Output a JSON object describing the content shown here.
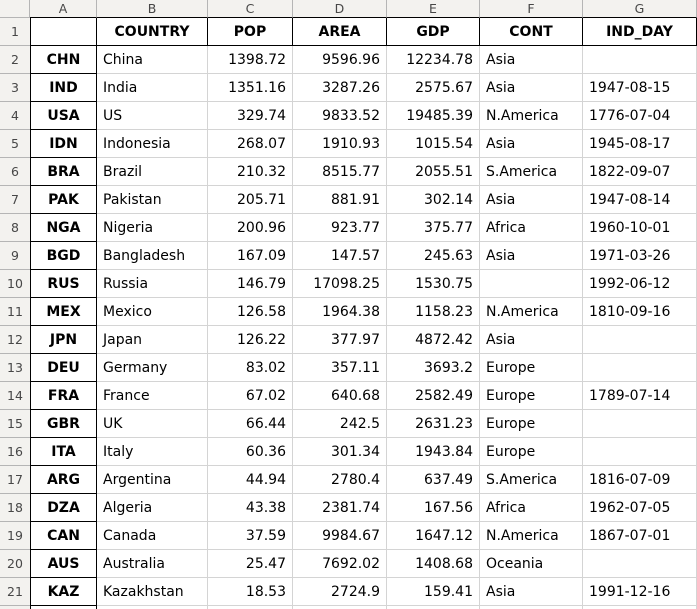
{
  "app": {
    "name": "spreadsheet-grid"
  },
  "colors": {
    "hdr-bg": "#f3f2ef",
    "hdr-line": "#b5b5b5",
    "hdr-text": "#474747",
    "grid": "#d4d4d4",
    "table-border": "#000000",
    "cell-bg": "#ffffff",
    "cell-text": "#000000"
  },
  "column_letters": [
    "A",
    "B",
    "C",
    "D",
    "E",
    "F",
    "G"
  ],
  "table": {
    "header": {
      "row_number": "1",
      "index_label": "",
      "labels": [
        "COUNTRY",
        "POP",
        "AREA",
        "GDP",
        "CONT",
        "IND_DAY"
      ]
    },
    "rows": [
      {
        "num": "2",
        "code": "CHN",
        "country": "China",
        "pop": "1398.72",
        "area": "9596.96",
        "gdp": "12234.78",
        "cont": "Asia",
        "ind_day": ""
      },
      {
        "num": "3",
        "code": "IND",
        "country": "India",
        "pop": "1351.16",
        "area": "3287.26",
        "gdp": "2575.67",
        "cont": "Asia",
        "ind_day": "1947-08-15"
      },
      {
        "num": "4",
        "code": "USA",
        "country": "US",
        "pop": "329.74",
        "area": "9833.52",
        "gdp": "19485.39",
        "cont": "N.America",
        "ind_day": "1776-07-04"
      },
      {
        "num": "5",
        "code": "IDN",
        "country": "Indonesia",
        "pop": "268.07",
        "area": "1910.93",
        "gdp": "1015.54",
        "cont": "Asia",
        "ind_day": "1945-08-17"
      },
      {
        "num": "6",
        "code": "BRA",
        "country": "Brazil",
        "pop": "210.32",
        "area": "8515.77",
        "gdp": "2055.51",
        "cont": "S.America",
        "ind_day": "1822-09-07"
      },
      {
        "num": "7",
        "code": "PAK",
        "country": "Pakistan",
        "pop": "205.71",
        "area": "881.91",
        "gdp": "302.14",
        "cont": "Asia",
        "ind_day": "1947-08-14"
      },
      {
        "num": "8",
        "code": "NGA",
        "country": "Nigeria",
        "pop": "200.96",
        "area": "923.77",
        "gdp": "375.77",
        "cont": "Africa",
        "ind_day": "1960-10-01"
      },
      {
        "num": "9",
        "code": "BGD",
        "country": "Bangladesh",
        "pop": "167.09",
        "area": "147.57",
        "gdp": "245.63",
        "cont": "Asia",
        "ind_day": "1971-03-26"
      },
      {
        "num": "10",
        "code": "RUS",
        "country": "Russia",
        "pop": "146.79",
        "area": "17098.25",
        "gdp": "1530.75",
        "cont": "",
        "ind_day": "1992-06-12"
      },
      {
        "num": "11",
        "code": "MEX",
        "country": "Mexico",
        "pop": "126.58",
        "area": "1964.38",
        "gdp": "1158.23",
        "cont": "N.America",
        "ind_day": "1810-09-16"
      },
      {
        "num": "12",
        "code": "JPN",
        "country": "Japan",
        "pop": "126.22",
        "area": "377.97",
        "gdp": "4872.42",
        "cont": "Asia",
        "ind_day": ""
      },
      {
        "num": "13",
        "code": "DEU",
        "country": "Germany",
        "pop": "83.02",
        "area": "357.11",
        "gdp": "3693.2",
        "cont": "Europe",
        "ind_day": ""
      },
      {
        "num": "14",
        "code": "FRA",
        "country": "France",
        "pop": "67.02",
        "area": "640.68",
        "gdp": "2582.49",
        "cont": "Europe",
        "ind_day": "1789-07-14"
      },
      {
        "num": "15",
        "code": "GBR",
        "country": "UK",
        "pop": "66.44",
        "area": "242.5",
        "gdp": "2631.23",
        "cont": "Europe",
        "ind_day": ""
      },
      {
        "num": "16",
        "code": "ITA",
        "country": "Italy",
        "pop": "60.36",
        "area": "301.34",
        "gdp": "1943.84",
        "cont": "Europe",
        "ind_day": ""
      },
      {
        "num": "17",
        "code": "ARG",
        "country": "Argentina",
        "pop": "44.94",
        "area": "2780.4",
        "gdp": "637.49",
        "cont": "S.America",
        "ind_day": "1816-07-09"
      },
      {
        "num": "18",
        "code": "DZA",
        "country": "Algeria",
        "pop": "43.38",
        "area": "2381.74",
        "gdp": "167.56",
        "cont": "Africa",
        "ind_day": "1962-07-05"
      },
      {
        "num": "19",
        "code": "CAN",
        "country": "Canada",
        "pop": "37.59",
        "area": "9984.67",
        "gdp": "1647.12",
        "cont": "N.America",
        "ind_day": "1867-07-01"
      },
      {
        "num": "20",
        "code": "AUS",
        "country": "Australia",
        "pop": "25.47",
        "area": "7692.02",
        "gdp": "1408.68",
        "cont": "Oceania",
        "ind_day": ""
      },
      {
        "num": "21",
        "code": "KAZ",
        "country": "Kazakhstan",
        "pop": "18.53",
        "area": "2724.9",
        "gdp": "159.41",
        "cont": "Asia",
        "ind_day": "1991-12-16"
      }
    ]
  }
}
